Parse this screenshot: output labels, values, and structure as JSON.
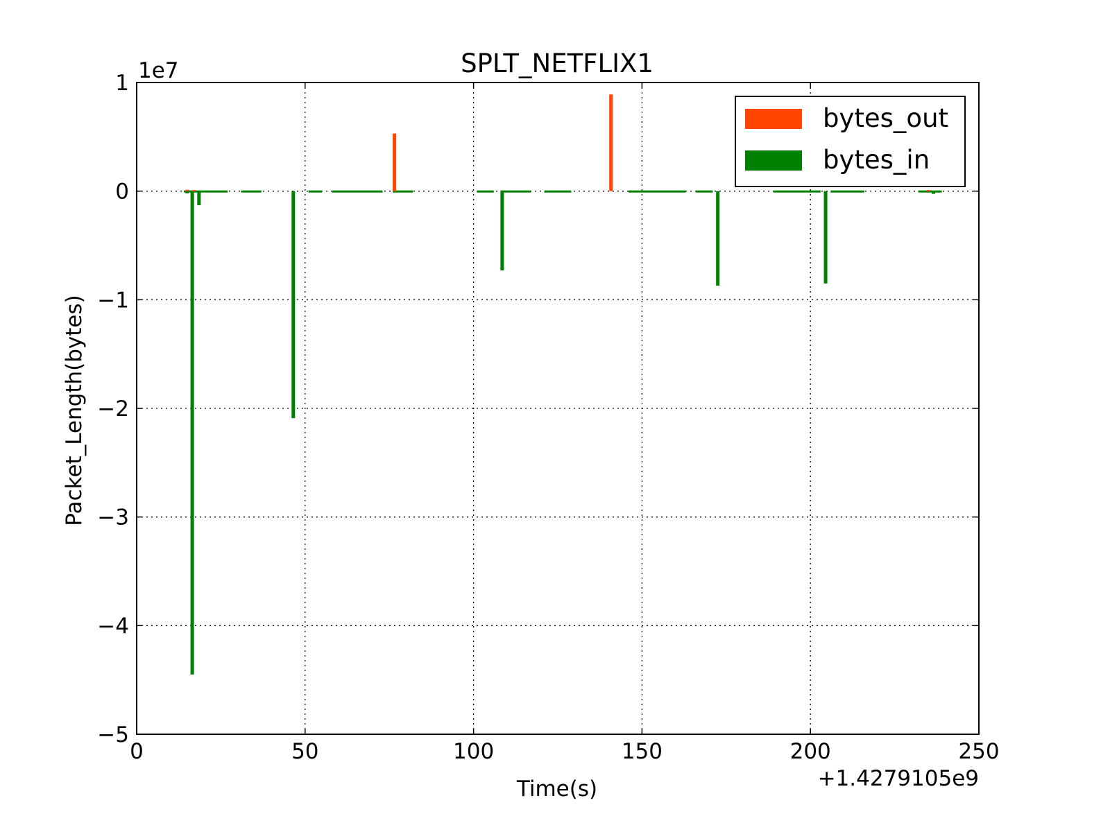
{
  "chart_data": {
    "type": "bar",
    "title": "SPLT_NETFLIX1",
    "xlabel": "Time(s)",
    "ylabel": "Packet_Length(bytes)",
    "x_offset_label": "+1.4279105e9",
    "y_scale_label": "1e7",
    "xlim": [
      0,
      250
    ],
    "ylim": [
      -5,
      1
    ],
    "x_ticks": [
      0,
      50,
      100,
      150,
      200,
      250
    ],
    "x_tick_labels": [
      "0",
      "50",
      "100",
      "150",
      "200",
      "250"
    ],
    "y_ticks": [
      1,
      0,
      -1,
      -2,
      -3,
      -4,
      -5
    ],
    "y_tick_labels": [
      "1",
      "0",
      "−1",
      "−2",
      "−3",
      "−4",
      "−5"
    ],
    "grid": true,
    "legend_position": "top-right",
    "series": [
      {
        "name": "bytes_out",
        "color": "#ff4500",
        "points": [
          {
            "x": 15,
            "y": 0.012
          },
          {
            "x": 17,
            "y": 0.01
          },
          {
            "x": 76.5,
            "y": 0.53
          },
          {
            "x": 140.8,
            "y": 0.89
          },
          {
            "x": 235,
            "y": 0.01
          }
        ]
      },
      {
        "name": "bytes_in",
        "color": "#008000",
        "points": [
          {
            "x": 15,
            "y": -0.02
          },
          {
            "x": 16.5,
            "y": -4.45
          },
          {
            "x": 18.5,
            "y": -0.13
          },
          {
            "x": 46.5,
            "y": -2.09
          },
          {
            "x": 108.5,
            "y": -0.73
          },
          {
            "x": 172.5,
            "y": -0.87
          },
          {
            "x": 204.5,
            "y": -0.85
          },
          {
            "x": 236.5,
            "y": -0.025
          }
        ]
      },
      {
        "name": "",
        "color": "#008000",
        "segments": [
          [
            14,
            27
          ],
          [
            31,
            37
          ],
          [
            51,
            55
          ],
          [
            58,
            73
          ],
          [
            76,
            82
          ],
          [
            101,
            106
          ],
          [
            108,
            117
          ],
          [
            121,
            129
          ],
          [
            146,
            163
          ],
          [
            166,
            171
          ],
          [
            189,
            203
          ],
          [
            206,
            216
          ],
          [
            232,
            239
          ]
        ]
      }
    ]
  }
}
